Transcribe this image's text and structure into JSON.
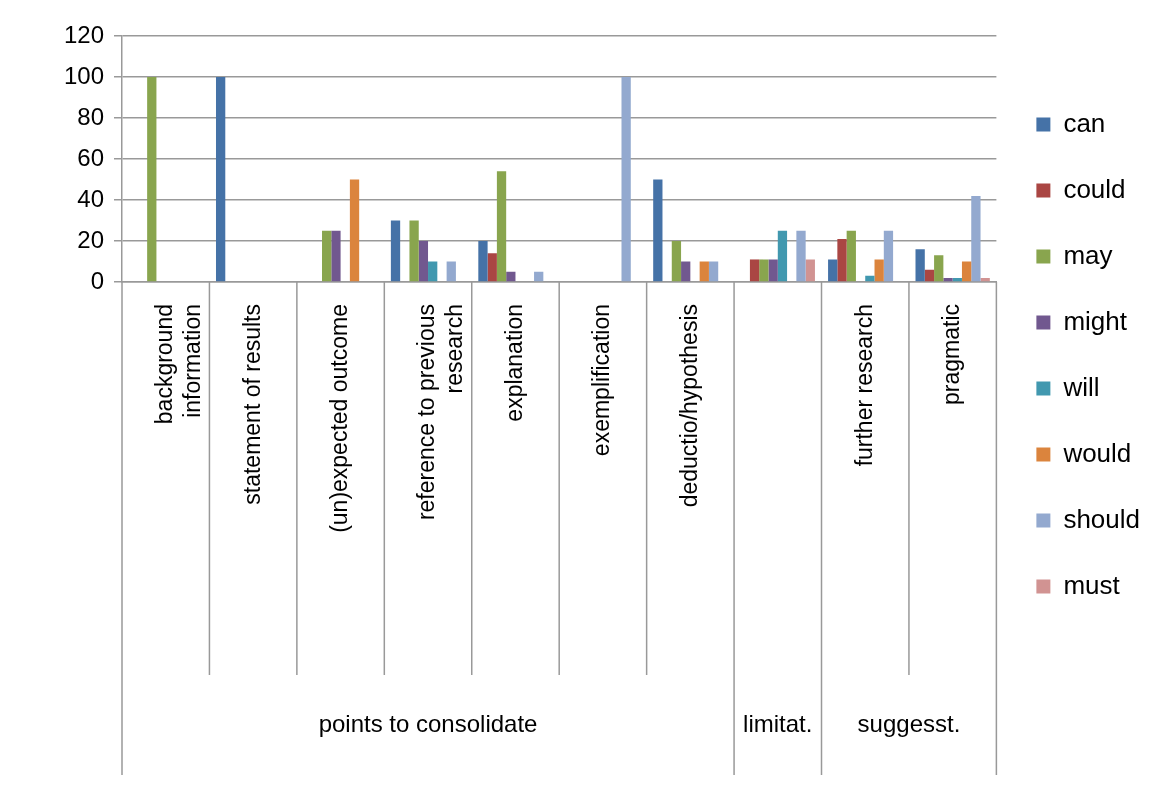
{
  "chart_data": {
    "type": "bar",
    "categories": [
      "background information",
      "statement of results",
      "(un)expected outcome",
      "reference to previous research",
      "explanation",
      "exemplification",
      "deductio/hypothesis",
      null,
      "further research",
      "pragmatic"
    ],
    "series": [
      {
        "name": "can",
        "color": "#4572a7",
        "values": [
          0,
          100,
          0,
          30,
          20,
          0,
          50,
          0,
          11,
          16
        ]
      },
      {
        "name": "could",
        "color": "#aa4643",
        "values": [
          0,
          0,
          0,
          0,
          14,
          0,
          0,
          11,
          21,
          6
        ]
      },
      {
        "name": "may",
        "color": "#89a54e",
        "values": [
          100,
          0,
          25,
          30,
          54,
          0,
          20,
          11,
          25,
          13
        ]
      },
      {
        "name": "might",
        "color": "#71588f",
        "values": [
          0,
          0,
          25,
          20,
          5,
          0,
          10,
          11,
          0,
          2
        ]
      },
      {
        "name": "will",
        "color": "#4198af",
        "values": [
          0,
          0,
          0,
          10,
          0,
          0,
          0,
          25,
          3,
          2
        ]
      },
      {
        "name": "would",
        "color": "#db843d",
        "values": [
          0,
          0,
          50,
          0,
          0,
          0,
          10,
          0,
          11,
          10
        ]
      },
      {
        "name": "should",
        "color": "#93a9cf",
        "values": [
          0,
          0,
          0,
          10,
          5,
          100,
          10,
          25,
          25,
          42
        ]
      },
      {
        "name": "must",
        "color": "#d19392",
        "values": [
          0,
          0,
          0,
          0,
          0,
          0,
          0,
          11,
          0,
          2
        ]
      }
    ],
    "ylim": [
      0,
      120
    ],
    "yticks": [
      0,
      20,
      40,
      60,
      80,
      100,
      120
    ],
    "grid": "y",
    "legend": "right",
    "annotations": [
      "points to consolidate",
      "limitat.",
      "suggesst."
    ]
  }
}
